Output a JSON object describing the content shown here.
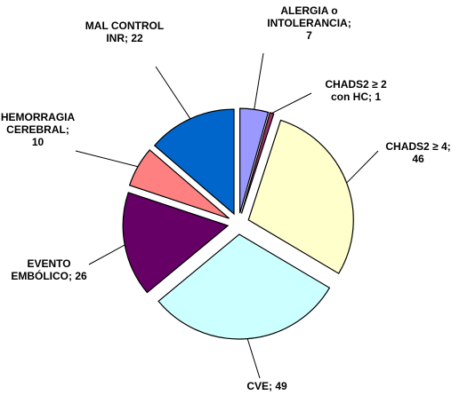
{
  "chart_data": {
    "type": "pie",
    "labels": [
      "ALERGIA o INTOLERANCIA; 7",
      "CHADS2 ≥ 2 con HC; 1",
      "CHADS2 ≥ 4; 46",
      "CVE; 49",
      "EVENTO EMBÓLICO; 26",
      "HEMORRAGIA CEREBRAL; 10",
      "MAL CONTROL INR; 22"
    ],
    "values": [
      7,
      1,
      46,
      49,
      26,
      10,
      22
    ],
    "colors": [
      "#9999ff",
      "#993366",
      "#ffffcc",
      "#ccffff",
      "#660066",
      "#ff8080",
      "#0066cc"
    ]
  }
}
